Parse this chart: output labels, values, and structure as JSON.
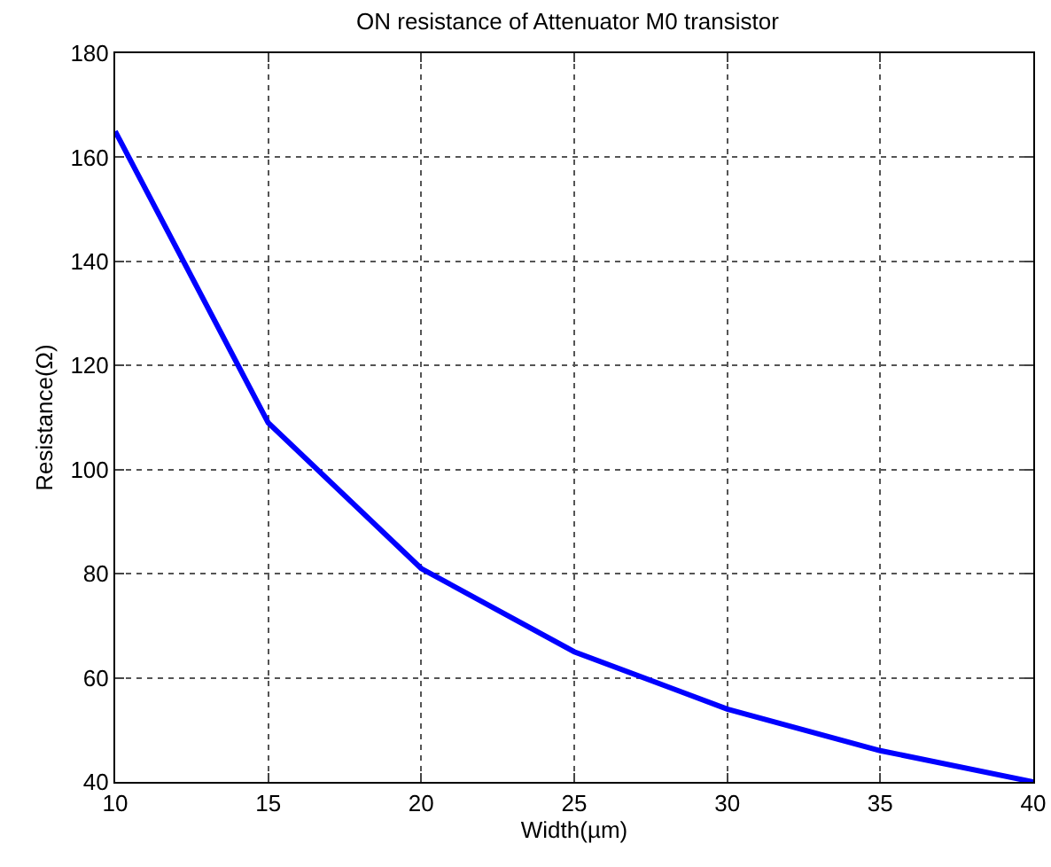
{
  "chart_data": {
    "type": "line",
    "title": "ON resistance of Attenuator M0 transistor",
    "xlabel": "Width(µm)",
    "ylabel": "Resistance(Ω)",
    "x": [
      10,
      15,
      20,
      25,
      30,
      35,
      40
    ],
    "series": [
      {
        "color": "#0000ff",
        "values": [
          165,
          109,
          81,
          65,
          54,
          46,
          40
        ]
      }
    ],
    "xlim": [
      10,
      40
    ],
    "xticks": [
      10,
      15,
      20,
      25,
      30,
      35,
      40
    ],
    "ylim": [
      40,
      180
    ],
    "yticks": [
      40,
      60,
      80,
      100,
      120,
      140,
      160,
      180
    ],
    "grid": true,
    "marker": "none",
    "line_style": "solid"
  }
}
